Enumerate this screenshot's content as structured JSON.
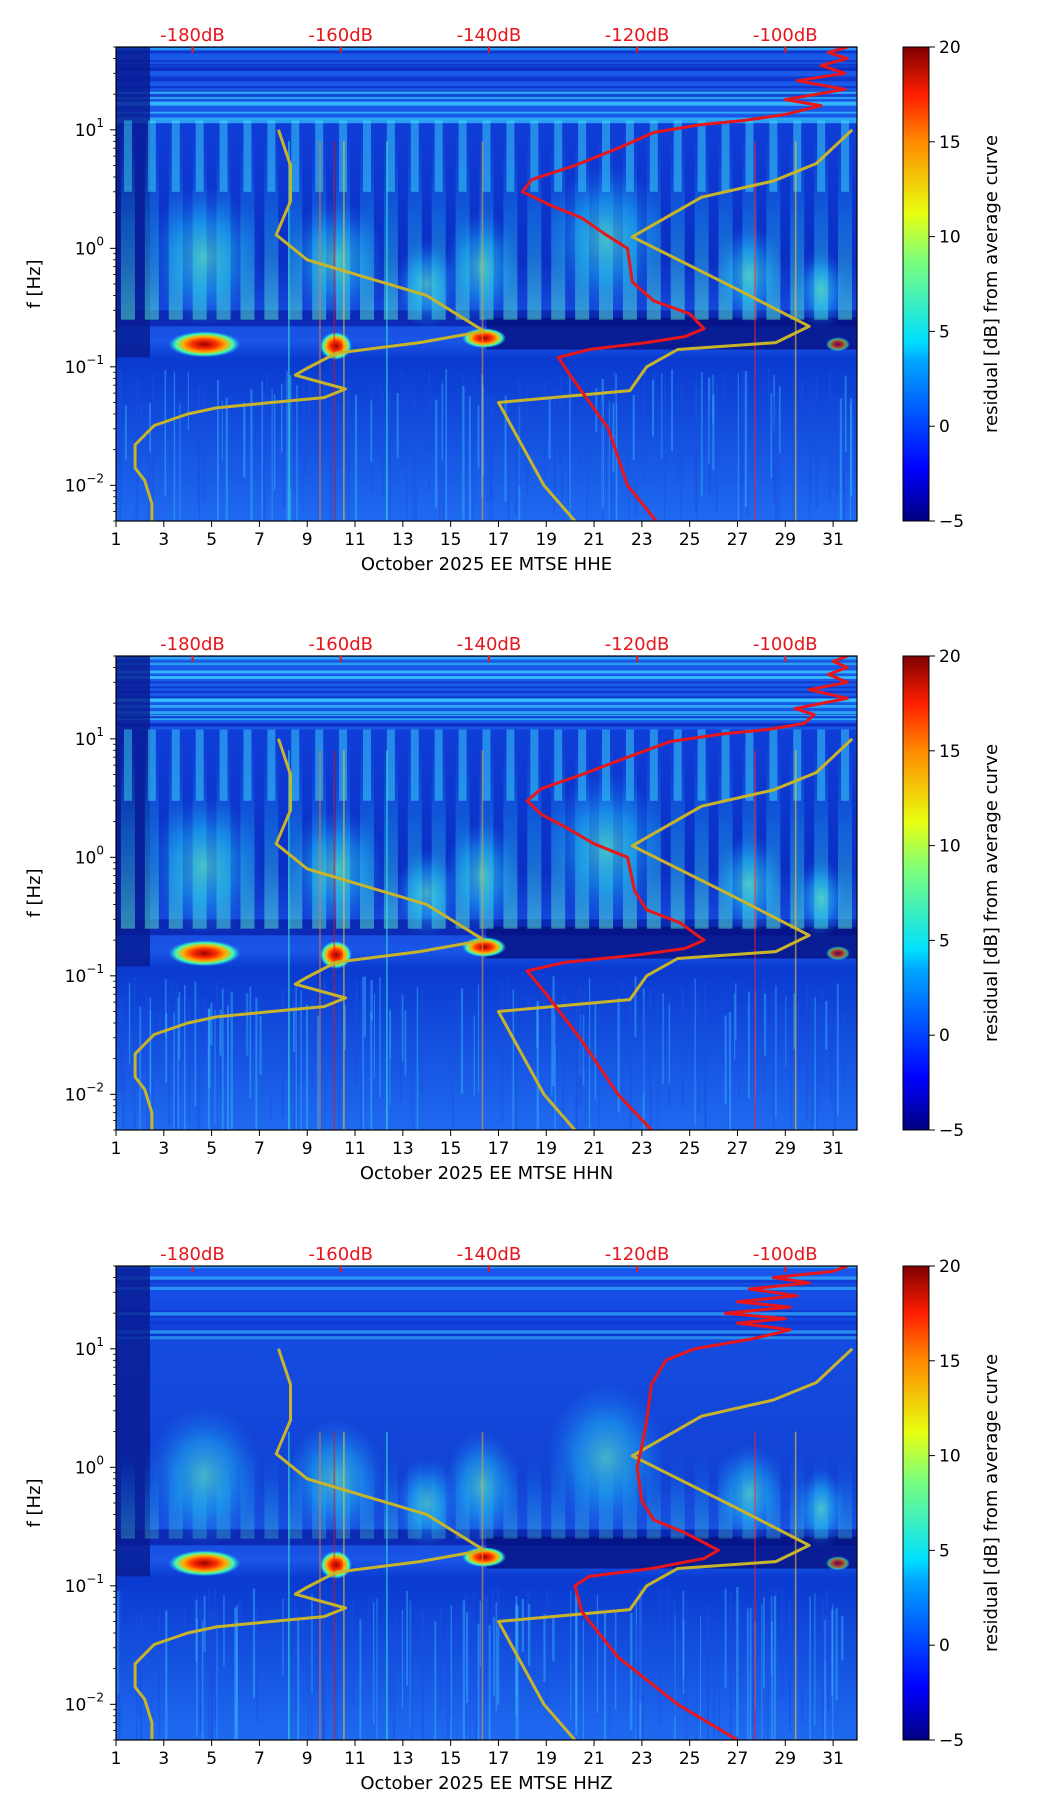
{
  "chart_data": [
    {
      "type": "heatmap",
      "channel": "HHE",
      "xlabel": "October 2025 EE MTSE  HHE",
      "ylabel": "f [Hz]",
      "x_ticks": [
        "1",
        "3",
        "5",
        "7",
        "9",
        "11",
        "13",
        "15",
        "17",
        "19",
        "21",
        "23",
        "25",
        "27",
        "29",
        "31"
      ],
      "x_range": [
        1,
        32
      ],
      "y_scale": "log",
      "y_range": [
        0.005,
        50
      ],
      "y_ticks": [
        {
          "base": "10",
          "exp": "1",
          "value": 10
        },
        {
          "base": "10",
          "exp": "0",
          "value": 1
        },
        {
          "base": "10",
          "exp": "−1",
          "value": 0.1
        },
        {
          "base": "10",
          "exp": "−2",
          "value": 0.01
        }
      ],
      "db_ticks": [
        {
          "label": "-180dB",
          "x": 4.2
        },
        {
          "label": "-160dB",
          "x": 10.4
        },
        {
          "label": "-140dB",
          "x": 16.6
        },
        {
          "label": "-120dB",
          "x": 22.8
        },
        {
          "label": "-100dB",
          "x": 29.0
        }
      ],
      "colorbar": {
        "label": "residual [dB] from average curve",
        "ticks": [
          "20",
          "15",
          "10",
          "5",
          "0",
          "−5"
        ],
        "range": [
          -5,
          20
        ]
      },
      "series": [
        {
          "name": "noise-model-low",
          "color": "#c8b42a",
          "points": [
            [
              2.5,
              0.005
            ],
            [
              2.5,
              0.007
            ],
            [
              2.2,
              0.011
            ],
            [
              1.8,
              0.014
            ],
            [
              1.8,
              0.022
            ],
            [
              2.6,
              0.032
            ],
            [
              4.0,
              0.04
            ],
            [
              5.2,
              0.045
            ],
            [
              7.5,
              0.05
            ],
            [
              9.7,
              0.055
            ],
            [
              10.6,
              0.065
            ],
            [
              8.5,
              0.085
            ],
            [
              8.9,
              0.095
            ],
            [
              10.2,
              0.13
            ],
            [
              13.7,
              0.16
            ],
            [
              16.4,
              0.2
            ],
            [
              14.0,
              0.4
            ],
            [
              9.0,
              0.8
            ],
            [
              7.7,
              1.3
            ],
            [
              8.3,
              2.5
            ],
            [
              8.3,
              5.0
            ],
            [
              7.8,
              10.0
            ]
          ]
        },
        {
          "name": "noise-model-high",
          "color": "#c8b42a",
          "points": [
            [
              20.2,
              0.005
            ],
            [
              18.9,
              0.01
            ],
            [
              17.0,
              0.05
            ],
            [
              22.5,
              0.063
            ],
            [
              23.2,
              0.1
            ],
            [
              24.5,
              0.14
            ],
            [
              28.6,
              0.16
            ],
            [
              30.0,
              0.22
            ],
            [
              27.0,
              0.45
            ],
            [
              22.6,
              1.25
            ],
            [
              25.5,
              2.7
            ],
            [
              28.5,
              3.7
            ],
            [
              30.3,
              5.2
            ],
            [
              31.8,
              10.0
            ]
          ]
        }
      ],
      "average_curve": {
        "name": "average-psd",
        "color": "#e8161b",
        "points": [
          [
            23.6,
            0.005
          ],
          [
            22.4,
            0.01
          ],
          [
            21.6,
            0.03
          ],
          [
            20.0,
            0.085
          ],
          [
            19.5,
            0.12
          ],
          [
            20.8,
            0.14
          ],
          [
            23.2,
            0.16
          ],
          [
            24.8,
            0.18
          ],
          [
            25.6,
            0.21
          ],
          [
            25.0,
            0.28
          ],
          [
            23.5,
            0.36
          ],
          [
            22.6,
            0.52
          ],
          [
            22.4,
            1.0
          ],
          [
            21.5,
            1.3
          ],
          [
            20.5,
            1.8
          ],
          [
            19.2,
            2.3
          ],
          [
            18.0,
            3.0
          ],
          [
            18.4,
            3.8
          ],
          [
            20.2,
            5.0
          ],
          [
            22.0,
            7.0
          ],
          [
            23.5,
            9.5
          ],
          [
            25.4,
            11.0
          ],
          [
            27.3,
            12.0
          ],
          [
            29.0,
            13.5
          ],
          [
            30.5,
            16.0
          ],
          [
            29.0,
            18.0
          ],
          [
            31.5,
            22.0
          ],
          [
            29.5,
            26.0
          ],
          [
            31.5,
            30.0
          ],
          [
            30.5,
            35.0
          ],
          [
            31.6,
            40.0
          ],
          [
            30.8,
            45.0
          ],
          [
            31.6,
            50.0
          ]
        ]
      }
    },
    {
      "type": "heatmap",
      "channel": "HHN",
      "xlabel": "October 2025 EE MTSE  HHN",
      "ylabel": "f [Hz]",
      "x_ticks": [
        "1",
        "3",
        "5",
        "7",
        "9",
        "11",
        "13",
        "15",
        "17",
        "19",
        "21",
        "23",
        "25",
        "27",
        "29",
        "31"
      ],
      "x_range": [
        1,
        32
      ],
      "y_scale": "log",
      "y_range": [
        0.005,
        50
      ],
      "y_ticks": [
        {
          "base": "10",
          "exp": "1",
          "value": 10
        },
        {
          "base": "10",
          "exp": "0",
          "value": 1
        },
        {
          "base": "10",
          "exp": "−1",
          "value": 0.1
        },
        {
          "base": "10",
          "exp": "−2",
          "value": 0.01
        }
      ],
      "db_ticks": [
        {
          "label": "-180dB",
          "x": 4.2
        },
        {
          "label": "-160dB",
          "x": 10.4
        },
        {
          "label": "-140dB",
          "x": 16.6
        },
        {
          "label": "-120dB",
          "x": 22.8
        },
        {
          "label": "-100dB",
          "x": 29.0
        }
      ],
      "colorbar": {
        "label": "residual [dB] from average curve",
        "ticks": [
          "20",
          "15",
          "10",
          "5",
          "0",
          "−5"
        ],
        "range": [
          -5,
          20
        ]
      },
      "series": [
        {
          "name": "noise-model-low",
          "color": "#c8b42a",
          "points": [
            [
              2.5,
              0.005
            ],
            [
              2.5,
              0.007
            ],
            [
              2.2,
              0.011
            ],
            [
              1.8,
              0.014
            ],
            [
              1.8,
              0.022
            ],
            [
              2.6,
              0.032
            ],
            [
              4.0,
              0.04
            ],
            [
              5.2,
              0.045
            ],
            [
              7.5,
              0.05
            ],
            [
              9.7,
              0.055
            ],
            [
              10.6,
              0.065
            ],
            [
              8.5,
              0.085
            ],
            [
              8.9,
              0.095
            ],
            [
              10.2,
              0.13
            ],
            [
              13.7,
              0.16
            ],
            [
              16.4,
              0.2
            ],
            [
              14.0,
              0.4
            ],
            [
              9.0,
              0.8
            ],
            [
              7.7,
              1.3
            ],
            [
              8.3,
              2.5
            ],
            [
              8.3,
              5.0
            ],
            [
              7.8,
              10.0
            ]
          ]
        },
        {
          "name": "noise-model-high",
          "color": "#c8b42a",
          "points": [
            [
              20.2,
              0.005
            ],
            [
              18.9,
              0.01
            ],
            [
              17.0,
              0.05
            ],
            [
              22.5,
              0.063
            ],
            [
              23.2,
              0.1
            ],
            [
              24.5,
              0.14
            ],
            [
              28.6,
              0.16
            ],
            [
              30.0,
              0.22
            ],
            [
              27.0,
              0.45
            ],
            [
              22.6,
              1.25
            ],
            [
              25.5,
              2.7
            ],
            [
              28.5,
              3.7
            ],
            [
              30.3,
              5.2
            ],
            [
              31.8,
              10.0
            ]
          ]
        }
      ],
      "average_curve": {
        "name": "average-psd",
        "color": "#e8161b",
        "points": [
          [
            23.4,
            0.005
          ],
          [
            22.0,
            0.01
          ],
          [
            20.4,
            0.03
          ],
          [
            19.0,
            0.07
          ],
          [
            18.2,
            0.11
          ],
          [
            19.8,
            0.13
          ],
          [
            22.8,
            0.15
          ],
          [
            24.8,
            0.17
          ],
          [
            25.6,
            0.2
          ],
          [
            24.6,
            0.28
          ],
          [
            23.2,
            0.36
          ],
          [
            22.7,
            0.52
          ],
          [
            22.4,
            1.0
          ],
          [
            21.0,
            1.3
          ],
          [
            19.8,
            1.8
          ],
          [
            18.8,
            2.3
          ],
          [
            18.2,
            3.0
          ],
          [
            18.8,
            3.8
          ],
          [
            20.5,
            5.0
          ],
          [
            22.4,
            7.0
          ],
          [
            24.2,
            9.5
          ],
          [
            26.4,
            11.0
          ],
          [
            28.3,
            12.0
          ],
          [
            29.8,
            13.5
          ],
          [
            30.2,
            16.0
          ],
          [
            29.4,
            18.0
          ],
          [
            31.6,
            22.0
          ],
          [
            30.0,
            26.0
          ],
          [
            31.6,
            30.0
          ],
          [
            30.8,
            35.0
          ],
          [
            31.6,
            40.0
          ],
          [
            31.0,
            45.0
          ],
          [
            31.6,
            50.0
          ]
        ]
      }
    },
    {
      "type": "heatmap",
      "channel": "HHZ",
      "xlabel": "October 2025 EE MTSE  HHZ",
      "ylabel": "f [Hz]",
      "x_ticks": [
        "1",
        "3",
        "5",
        "7",
        "9",
        "11",
        "13",
        "15",
        "17",
        "19",
        "21",
        "23",
        "25",
        "27",
        "29",
        "31"
      ],
      "x_range": [
        1,
        32
      ],
      "y_scale": "log",
      "y_range": [
        0.005,
        50
      ],
      "y_ticks": [
        {
          "base": "10",
          "exp": "1",
          "value": 10
        },
        {
          "base": "10",
          "exp": "0",
          "value": 1
        },
        {
          "base": "10",
          "exp": "−1",
          "value": 0.1
        },
        {
          "base": "10",
          "exp": "−2",
          "value": 0.01
        }
      ],
      "db_ticks": [
        {
          "label": "-180dB",
          "x": 4.2
        },
        {
          "label": "-160dB",
          "x": 10.4
        },
        {
          "label": "-140dB",
          "x": 16.6
        },
        {
          "label": "-120dB",
          "x": 22.8
        },
        {
          "label": "-100dB",
          "x": 29.0
        }
      ],
      "colorbar": {
        "label": "residual [dB] from average curve",
        "ticks": [
          "20",
          "15",
          "10",
          "5",
          "0",
          "−5"
        ],
        "range": [
          -5,
          20
        ]
      },
      "series": [
        {
          "name": "noise-model-low",
          "color": "#c8b42a",
          "points": [
            [
              2.5,
              0.005
            ],
            [
              2.5,
              0.007
            ],
            [
              2.2,
              0.011
            ],
            [
              1.8,
              0.014
            ],
            [
              1.8,
              0.022
            ],
            [
              2.6,
              0.032
            ],
            [
              4.0,
              0.04
            ],
            [
              5.2,
              0.045
            ],
            [
              7.5,
              0.05
            ],
            [
              9.7,
              0.055
            ],
            [
              10.6,
              0.065
            ],
            [
              8.5,
              0.085
            ],
            [
              8.9,
              0.095
            ],
            [
              10.2,
              0.13
            ],
            [
              13.7,
              0.16
            ],
            [
              16.4,
              0.2
            ],
            [
              14.0,
              0.4
            ],
            [
              9.0,
              0.8
            ],
            [
              7.7,
              1.3
            ],
            [
              8.3,
              2.5
            ],
            [
              8.3,
              5.0
            ],
            [
              7.8,
              10.0
            ]
          ]
        },
        {
          "name": "noise-model-high",
          "color": "#c8b42a",
          "points": [
            [
              20.2,
              0.005
            ],
            [
              18.9,
              0.01
            ],
            [
              17.0,
              0.05
            ],
            [
              22.5,
              0.063
            ],
            [
              23.2,
              0.1
            ],
            [
              24.5,
              0.14
            ],
            [
              28.6,
              0.16
            ],
            [
              30.0,
              0.22
            ],
            [
              27.0,
              0.45
            ],
            [
              22.6,
              1.25
            ],
            [
              25.5,
              2.7
            ],
            [
              28.5,
              3.7
            ],
            [
              30.3,
              5.2
            ],
            [
              31.8,
              10.0
            ]
          ]
        }
      ],
      "average_curve": {
        "name": "average-psd",
        "color": "#e8161b",
        "points": [
          [
            27.0,
            0.005
          ],
          [
            24.5,
            0.01
          ],
          [
            22.0,
            0.025
          ],
          [
            20.5,
            0.06
          ],
          [
            20.2,
            0.1
          ],
          [
            20.8,
            0.12
          ],
          [
            23.4,
            0.14
          ],
          [
            25.6,
            0.17
          ],
          [
            26.2,
            0.2
          ],
          [
            24.8,
            0.28
          ],
          [
            23.5,
            0.36
          ],
          [
            23.0,
            0.52
          ],
          [
            22.8,
            1.0
          ],
          [
            23.0,
            1.5
          ],
          [
            23.2,
            2.5
          ],
          [
            23.4,
            5.0
          ],
          [
            24.0,
            8.0
          ],
          [
            25.2,
            10.0
          ],
          [
            27.5,
            12.0
          ],
          [
            28.6,
            13.5
          ],
          [
            29.2,
            14.5
          ],
          [
            27.0,
            16.5
          ],
          [
            29.0,
            18.0
          ],
          [
            26.5,
            20.0
          ],
          [
            29.2,
            22.5
          ],
          [
            27.0,
            25.0
          ],
          [
            29.5,
            28.0
          ],
          [
            27.5,
            32.0
          ],
          [
            30.0,
            36.0
          ],
          [
            28.5,
            40.0
          ],
          [
            31.0,
            45.0
          ],
          [
            31.6,
            50.0
          ]
        ]
      }
    }
  ]
}
